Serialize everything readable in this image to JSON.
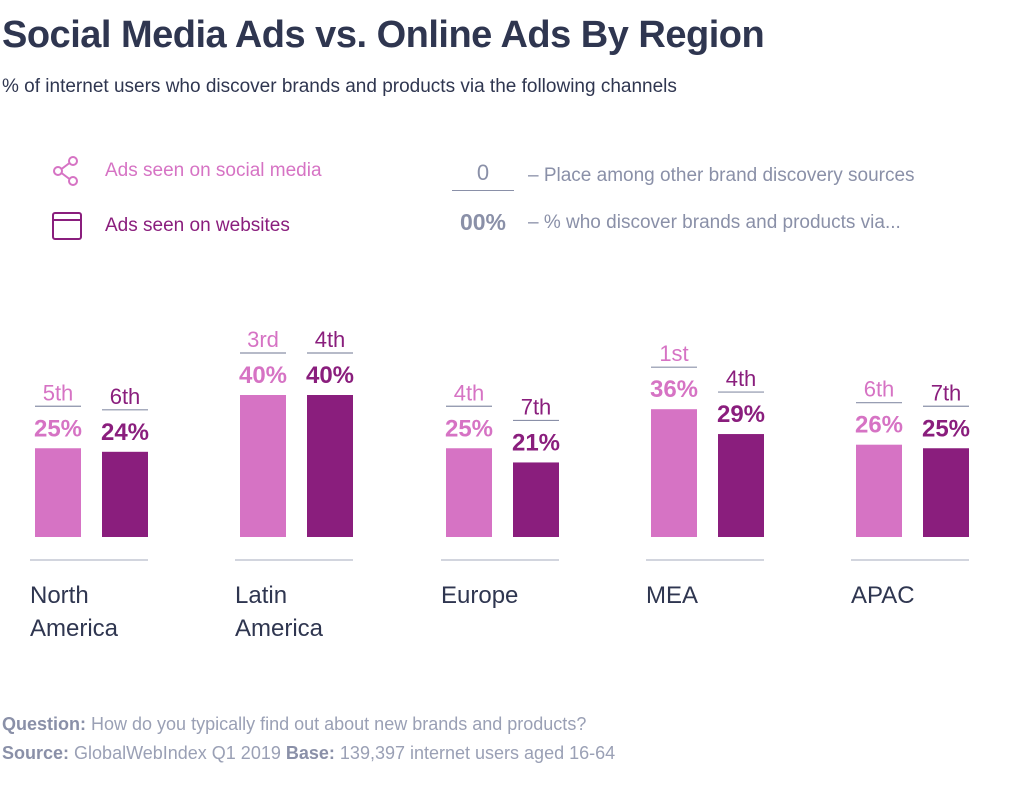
{
  "title": "Social Media Ads vs. Online Ads By Region",
  "subtitle": "% of internet users who discover brands and products via the following channels",
  "legend": {
    "social": {
      "label": "Ads seen on social media",
      "icon": "share-icon",
      "color": "#d673c4"
    },
    "websites": {
      "label": "Ads seen on websites",
      "icon": "browser-window-icon",
      "color": "#8a1e7d"
    }
  },
  "key": {
    "rank_sample": "0",
    "rank_desc": "– Place among other brand discovery sources",
    "pct_sample": "00%",
    "pct_desc": "– % who discover brands and products via..."
  },
  "chart_data": {
    "type": "bar",
    "categories": [
      "North America",
      "Latin America",
      "Europe",
      "MEA",
      "APAC"
    ],
    "series": [
      {
        "name": "Ads seen on social media",
        "color": "#d673c4",
        "values": [
          25,
          40,
          25,
          36,
          26
        ],
        "ranks": [
          "5th",
          "3rd",
          "4th",
          "1st",
          "6th"
        ]
      },
      {
        "name": "Ads seen on websites",
        "color": "#8a1e7d",
        "values": [
          24,
          40,
          21,
          29,
          25
        ],
        "ranks": [
          "6th",
          "4th",
          "7th",
          "4th",
          "7th"
        ]
      }
    ],
    "value_suffix": "%",
    "ylim": [
      0,
      45
    ]
  },
  "footer": {
    "question_label": "Question:",
    "question_text": "How do you typically find out about new brands and products?",
    "source_label": "Source:",
    "source_text": "GlobalWebIndex Q1 2019",
    "base_label": "Base:",
    "base_text": "139,397 internet users aged 16-64"
  }
}
